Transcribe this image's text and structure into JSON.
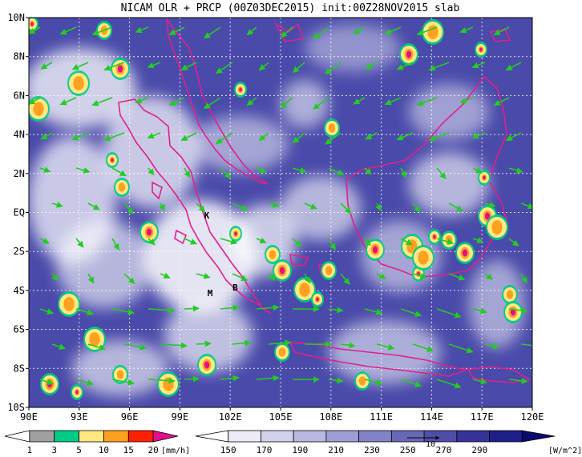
{
  "title": "NICAM OLR + PRCP (00Z03DEC2015) init:00Z28NOV2015 slab",
  "map": {
    "x_axis": {
      "range": [
        90,
        120
      ],
      "ticks": [
        {
          "value": 90,
          "label": "90E"
        },
        {
          "value": 93,
          "label": "93E"
        },
        {
          "value": 96,
          "label": "96E"
        },
        {
          "value": 99,
          "label": "99E"
        },
        {
          "value": 102,
          "label": "102E"
        },
        {
          "value": 105,
          "label": "105E"
        },
        {
          "value": 108,
          "label": "108E"
        },
        {
          "value": 111,
          "label": "111E"
        },
        {
          "value": 114,
          "label": "114E"
        },
        {
          "value": 117,
          "label": "117E"
        },
        {
          "value": 120,
          "label": "120E"
        }
      ]
    },
    "y_axis": {
      "range": [
        -10,
        10
      ],
      "ticks": [
        {
          "value": 10,
          "label": "10N"
        },
        {
          "value": 8,
          "label": "8N"
        },
        {
          "value": 6,
          "label": "6N"
        },
        {
          "value": 4,
          "label": "4N"
        },
        {
          "value": 2,
          "label": "2N"
        },
        {
          "value": 0,
          "label": "EQ"
        },
        {
          "value": -2,
          "label": "2S"
        },
        {
          "value": -4,
          "label": "4S"
        },
        {
          "value": -6,
          "label": "6S"
        },
        {
          "value": -8,
          "label": "8S"
        },
        {
          "value": -10,
          "label": "10S"
        }
      ]
    },
    "grid": true,
    "colors": {
      "ocean": "#4a4aaa",
      "cloud": "#ffffff",
      "coast": "#e0208c",
      "wind": "#22cc22"
    },
    "markers": [
      {
        "label": "K",
        "lon": 100.6,
        "lat": -0.3
      },
      {
        "label": "M",
        "lon": 100.8,
        "lat": -4.3
      },
      {
        "label": "B",
        "lon": 102.3,
        "lat": -4.0
      }
    ]
  },
  "precip_legend": {
    "labels": [
      "1",
      "3",
      "5",
      "10",
      "15",
      "20"
    ],
    "unit": "[mm/h]",
    "colors": [
      "#ffffff",
      "#a0a0a0",
      "#00cc88",
      "#ffe880",
      "#ffa020",
      "#ff2000",
      "#e0108c"
    ]
  },
  "olr_legend": {
    "labels": [
      "150",
      "170",
      "190",
      "210",
      "230",
      "250",
      "270",
      "290"
    ],
    "unit": "[W/m^2]",
    "vector_label": "10",
    "colors": [
      "#ffffff",
      "#ececf6",
      "#d2d2ec",
      "#b8b8e0",
      "#9e9ed4",
      "#8282c6",
      "#6868b8",
      "#4e4eaa",
      "#34349a",
      "#1e1e8a",
      "#0a0a70"
    ]
  }
}
